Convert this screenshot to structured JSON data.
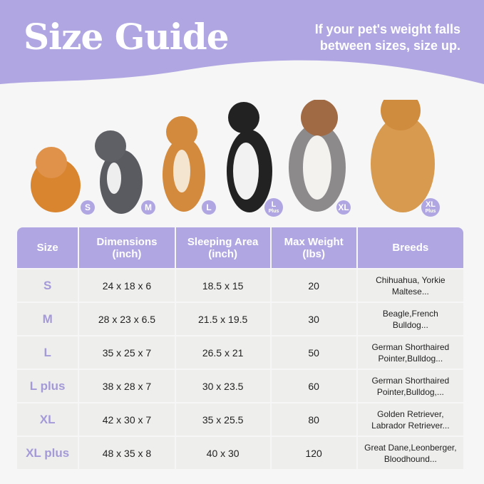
{
  "header": {
    "title": "Size Guide",
    "note": "If your pet's weight falls between sizes, size up."
  },
  "colors": {
    "accent": "#b0a6e2",
    "cell": "#eeeeec"
  },
  "dogs": [
    {
      "badge": "S",
      "sub": ""
    },
    {
      "badge": "M",
      "sub": ""
    },
    {
      "badge": "L",
      "sub": ""
    },
    {
      "badge": "L",
      "sub": "Plus"
    },
    {
      "badge": "XL",
      "sub": ""
    },
    {
      "badge": "XL",
      "sub": "Plus"
    }
  ],
  "table": {
    "headers": [
      [
        "Size",
        ""
      ],
      [
        "Dimensions",
        "(inch)"
      ],
      [
        "Sleeping Area",
        "(inch)"
      ],
      [
        "Max Weight",
        "(lbs)"
      ],
      [
        "Breeds",
        ""
      ]
    ],
    "rows": [
      [
        "S",
        "24 x 18 x 6",
        "18.5 x 15",
        "20",
        "Chihuahua, Yorkie",
        "Maltese..."
      ],
      [
        "M",
        "28 x 23 x 6.5",
        "21.5 x 19.5",
        "30",
        "Beagle,French",
        "Bulldog..."
      ],
      [
        "L",
        "35 x 25 x 7",
        "26.5 x 21",
        "50",
        "German Shorthaired",
        "Pointer,Bulldog..."
      ],
      [
        "L plus",
        "38 x 28 x 7",
        "30 x 23.5",
        "60",
        "German Shorthaired",
        "Pointer,Bulldog,..."
      ],
      [
        "XL",
        "42 x 30 x 7",
        "35 x 25.5",
        "80",
        "Golden Retriever,",
        "Labrador Retriever..."
      ],
      [
        "XL plus",
        "48 x 35 x 8",
        "40 x 30",
        "120",
        "Great Dane,Leonberger,",
        "Bloodhound..."
      ]
    ]
  }
}
